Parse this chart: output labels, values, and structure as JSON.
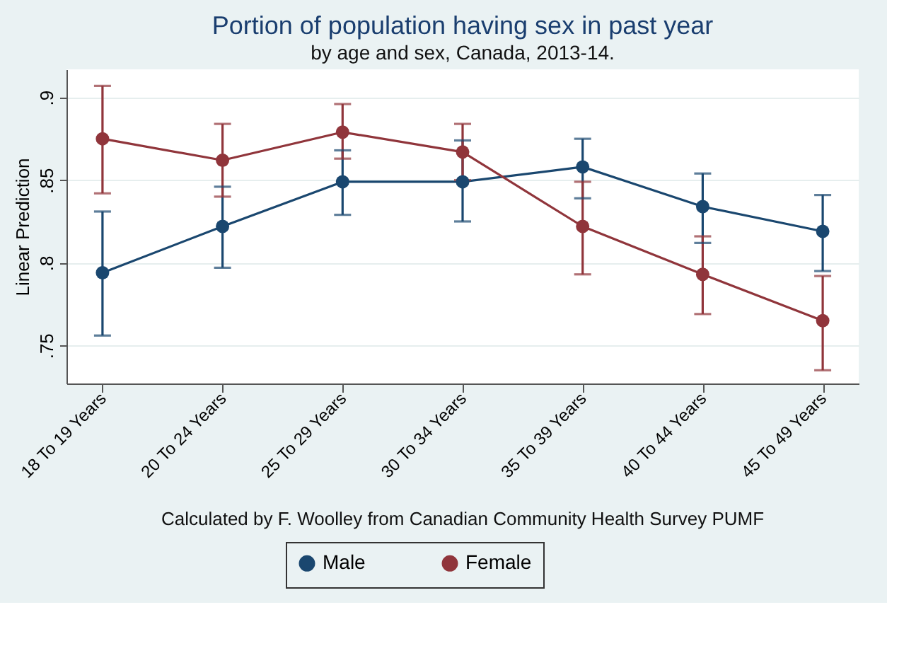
{
  "chart_data": {
    "type": "line",
    "title": "Portion of population having sex in past year",
    "subtitle": "by age and sex, Canada, 2013-14.",
    "ylabel": "Linear Prediction",
    "annotations": [
      "Calculated by F. Woolley from Canadian Community Health Survey PUMF"
    ],
    "categories": [
      "18 To 19 Years",
      "20 To 24 Years",
      "25 To 29 Years",
      "30 To 34 Years",
      "35 To 39 Years",
      "40 To 44 Years",
      "45 To 49 Years"
    ],
    "series": [
      {
        "name": "Male",
        "color": "#1a476f",
        "values": [
          0.794,
          0.822,
          0.849,
          0.849,
          0.858,
          0.834,
          0.819
        ],
        "errors": [
          [
            0.756,
            0.831
          ],
          [
            0.797,
            0.846
          ],
          [
            0.829,
            0.868
          ],
          [
            0.825,
            0.874
          ],
          [
            0.839,
            0.875
          ],
          [
            0.812,
            0.854
          ],
          [
            0.795,
            0.841
          ]
        ]
      },
      {
        "name": "Female",
        "color": "#90353b",
        "values": [
          0.875,
          0.862,
          0.879,
          0.867,
          0.822,
          0.793,
          0.765
        ],
        "errors": [
          [
            0.842,
            0.907
          ],
          [
            0.84,
            0.884
          ],
          [
            0.863,
            0.896
          ],
          [
            0.85,
            0.884
          ],
          [
            0.793,
            0.849
          ],
          [
            0.769,
            0.816
          ],
          [
            0.735,
            0.792
          ]
        ]
      }
    ],
    "ylim": [
      0.727,
      0.917
    ],
    "yticks": [
      {
        "value": 0.75,
        "label": ".75"
      },
      {
        "value": 0.8,
        "label": ".8"
      },
      {
        "value": 0.85,
        "label": ".85"
      },
      {
        "value": 0.9,
        "label": ".9"
      }
    ],
    "grid": "y",
    "legend": "bottom",
    "marker": "circle",
    "line_style": "solid"
  }
}
